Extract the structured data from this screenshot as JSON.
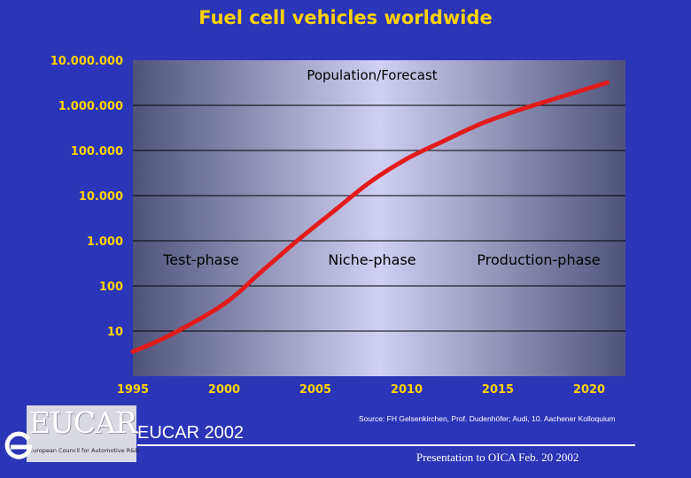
{
  "chart_data": {
    "type": "line",
    "title": "Fuel cell vehicles worldwide",
    "series_label": "Population/Forecast",
    "y_scale": "log",
    "y_ticks": [
      10000000,
      1000000,
      100000,
      10000,
      1000,
      100,
      10
    ],
    "y_tick_labels": [
      "10.000.000",
      "1.000.000",
      "100.000",
      "10.000",
      "1.000",
      "100",
      "10"
    ],
    "x_ticks": [
      1995,
      2000,
      2005,
      2010,
      2015,
      2020
    ],
    "x_tick_labels": [
      "1995",
      "2000",
      "2005",
      "2010",
      "2015",
      "2020"
    ],
    "xlim": [
      1995,
      2021
    ],
    "ylim": [
      1,
      10000000
    ],
    "x": [
      1995,
      1997,
      2000,
      2002,
      2004,
      2006,
      2008,
      2010,
      2012,
      2014,
      2016,
      2018,
      2021
    ],
    "values": [
      3.5,
      8,
      40,
      200,
      1000,
      4500,
      20000,
      65000,
      160000,
      380000,
      750000,
      1350000,
      3200000
    ],
    "phases": [
      "Test-phase",
      "Niche-phase",
      "Production-phase"
    ],
    "colors": {
      "line": "#e31b1b",
      "tick": "#ffd200",
      "grid": "#000000"
    }
  },
  "footer": {
    "logo_text": "EUCAR",
    "logo_subtitle": "European Council for Automotive R&D",
    "eucar_year": "EUCAR 2002",
    "source": "Source: FH Gelsenkirchen, Prof. Dudenhöfer; Audi, 10. Aachener Kolloquium",
    "presentation": "Presentation to OICA Feb. 20 2002"
  }
}
